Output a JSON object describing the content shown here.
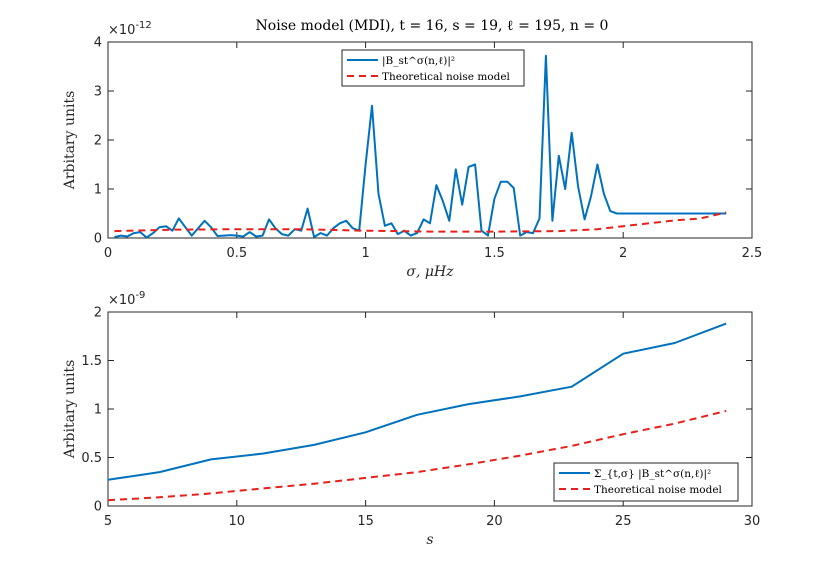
{
  "figure_title": "Noise model (MDI), t = 16, s = 19, ℓ = 195, n = 0",
  "chart_data": [
    {
      "type": "line",
      "xlabel": "σ, μHz",
      "ylabel": "Arbitary units",
      "exponent_label": "×10",
      "exponent_power": "-12",
      "xlim": [
        0,
        2.5
      ],
      "ylim": [
        0,
        4
      ],
      "xticks": [
        0,
        0.5,
        1,
        1.5,
        2,
        2.5
      ],
      "xtick_labels": [
        "0",
        "0.5",
        "1",
        "1.5",
        "2",
        "2.5"
      ],
      "yticks": [
        0,
        1,
        2,
        3,
        4
      ],
      "ytick_labels": [
        "0",
        "1",
        "2",
        "3",
        "4"
      ],
      "legend_position": "top-center",
      "series": [
        {
          "name": "|B_st^σ(n,ℓ)|²",
          "color": "#0072BD",
          "style": "solid",
          "x": [
            0.025,
            0.05,
            0.075,
            0.1,
            0.125,
            0.15,
            0.175,
            0.2,
            0.225,
            0.25,
            0.275,
            0.3,
            0.325,
            0.35,
            0.375,
            0.4,
            0.425,
            0.45,
            0.475,
            0.5,
            0.525,
            0.55,
            0.575,
            0.6,
            0.625,
            0.65,
            0.675,
            0.7,
            0.725,
            0.75,
            0.775,
            0.8,
            0.825,
            0.85,
            0.875,
            0.9,
            0.925,
            0.95,
            0.975,
            1.0,
            1.025,
            1.05,
            1.075,
            1.1,
            1.125,
            1.15,
            1.175,
            1.2,
            1.225,
            1.25,
            1.275,
            1.3,
            1.325,
            1.35,
            1.375,
            1.4,
            1.425,
            1.45,
            1.475,
            1.5,
            1.525,
            1.55,
            1.575,
            1.6,
            1.625,
            1.65,
            1.675,
            1.7,
            1.725,
            1.75,
            1.775,
            1.8,
            1.825,
            1.85,
            1.875,
            1.9,
            1.925,
            1.95,
            1.975,
            2.0,
            2.025,
            2.05,
            2.075,
            2.1,
            2.125,
            2.15,
            2.175,
            2.2,
            2.225,
            2.25,
            2.275,
            2.3,
            2.325,
            2.35,
            2.375,
            2.4
          ],
          "y": [
            0.02,
            0.05,
            0.03,
            0.1,
            0.12,
            0.01,
            0.1,
            0.22,
            0.24,
            0.15,
            0.4,
            0.22,
            0.05,
            0.2,
            0.35,
            0.22,
            0.04,
            0.05,
            0.06,
            0.05,
            0.03,
            0.12,
            0.03,
            0.05,
            0.38,
            0.2,
            0.08,
            0.05,
            0.18,
            0.15,
            0.6,
            0.02,
            0.1,
            0.05,
            0.2,
            0.3,
            0.35,
            0.2,
            0.15,
            1.5,
            2.7,
            0.9,
            0.25,
            0.3,
            0.08,
            0.15,
            0.05,
            0.1,
            0.38,
            0.3,
            1.08,
            0.75,
            0.35,
            1.4,
            0.68,
            1.45,
            1.5,
            0.15,
            0.05,
            0.8,
            1.15,
            1.15,
            1.02,
            0.05,
            0.12,
            0.1,
            0.4,
            3.72,
            0.35,
            1.68,
            1.0,
            2.15,
            1.05,
            0.38,
            0.85,
            1.5,
            0.9,
            0.55,
            0.5,
            0.5,
            0.5,
            0.5,
            0.5,
            0.5,
            0.5,
            0.5,
            0.5,
            0.5,
            0.5,
            0.5,
            0.5,
            0.5,
            0.5,
            0.5,
            0.5,
            0.5
          ]
        },
        {
          "name": "Theoretical noise model",
          "color": "#E6201A",
          "style": "dashed",
          "x": [
            0.025,
            0.25,
            0.5,
            0.75,
            1.0,
            1.25,
            1.5,
            1.75,
            1.9,
            2.0,
            2.1,
            2.2,
            2.3,
            2.4
          ],
          "y": [
            0.14,
            0.17,
            0.18,
            0.18,
            0.15,
            0.13,
            0.13,
            0.14,
            0.18,
            0.24,
            0.3,
            0.36,
            0.4,
            0.52
          ]
        }
      ]
    },
    {
      "type": "line",
      "xlabel": "s",
      "ylabel": "Arbitary units",
      "exponent_label": "×10",
      "exponent_power": "-9",
      "xlim": [
        5,
        30
      ],
      "ylim": [
        0,
        2
      ],
      "xticks": [
        5,
        10,
        15,
        20,
        25,
        30
      ],
      "xtick_labels": [
        "5",
        "10",
        "15",
        "20",
        "25",
        "30"
      ],
      "yticks": [
        0,
        0.5,
        1,
        1.5,
        2
      ],
      "ytick_labels": [
        "0",
        "0.5",
        "1",
        "1.5",
        "2"
      ],
      "legend_position": "bottom-right",
      "series": [
        {
          "name": "Σ_{t,σ} |B_st^σ(n,ℓ)|²",
          "color": "#0072BD",
          "style": "solid",
          "x": [
            5,
            7,
            9,
            11,
            13,
            15,
            17,
            19,
            21,
            23,
            25,
            27,
            29
          ],
          "y": [
            0.27,
            0.35,
            0.48,
            0.54,
            0.63,
            0.76,
            0.94,
            1.05,
            1.13,
            1.23,
            1.57,
            1.68,
            1.88
          ]
        },
        {
          "name": "Theoretical noise model",
          "color": "#E6201A",
          "style": "dashed",
          "x": [
            5,
            7,
            9,
            11,
            13,
            15,
            17,
            19,
            21,
            23,
            25,
            27,
            29
          ],
          "y": [
            0.06,
            0.09,
            0.13,
            0.18,
            0.23,
            0.29,
            0.35,
            0.43,
            0.52,
            0.62,
            0.74,
            0.85,
            0.98
          ]
        }
      ]
    }
  ]
}
